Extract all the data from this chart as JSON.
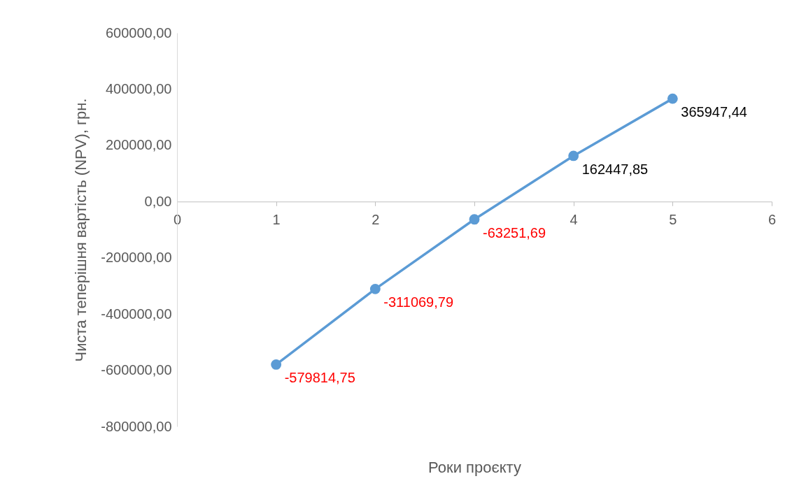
{
  "chart_data": {
    "type": "line",
    "xlabel": "Роки проєкту",
    "ylabel": "Чиста теперішня вартість (NPV), грн.",
    "x": [
      1,
      2,
      3,
      4,
      5
    ],
    "series": [
      {
        "color": "#5b9bd5",
        "values": [
          -579814.75,
          -311069.79,
          -63251.69,
          162447.85,
          365947.44
        ],
        "value_labels": [
          "-579814,75",
          "-311069,79",
          "-63251,69",
          "162447,85",
          "365947,44"
        ]
      }
    ],
    "xlim": [
      0,
      6
    ],
    "xticks": [
      0,
      1,
      2,
      3,
      4,
      5,
      6
    ],
    "ylim": [
      -800000,
      600000
    ],
    "yticks": [
      {
        "value": -800000,
        "label": "-800000,00"
      },
      {
        "value": -600000,
        "label": "-600000,00"
      },
      {
        "value": -400000,
        "label": "-400000,00"
      },
      {
        "value": -200000,
        "label": "-200000,00"
      },
      {
        "value": 0,
        "label": "0,00"
      },
      {
        "value": 200000,
        "label": "200000,00"
      },
      {
        "value": 400000,
        "label": "400000,00"
      },
      {
        "value": 600000,
        "label": "600000,00"
      }
    ],
    "grid": false,
    "legend": false,
    "marker": "circle",
    "line_style": "solid"
  }
}
